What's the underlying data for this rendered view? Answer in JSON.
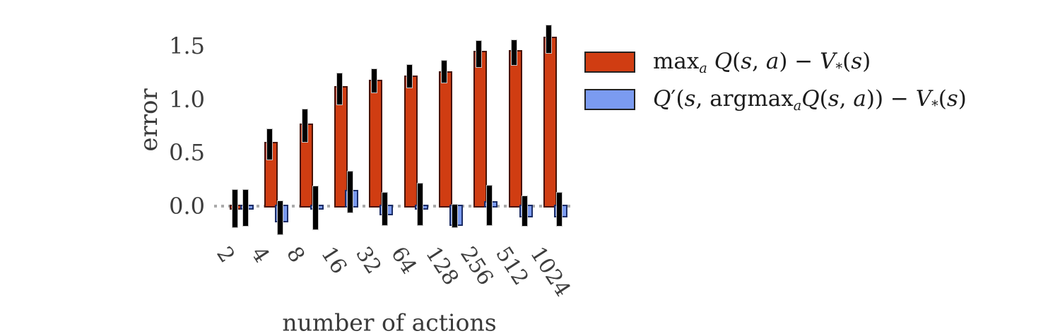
{
  "chart_data": {
    "type": "bar",
    "title": "",
    "xlabel": "number of actions",
    "ylabel": "error",
    "categories": [
      "2",
      "4",
      "8",
      "16",
      "32",
      "64",
      "128",
      "256",
      "512",
      "1024"
    ],
    "ytick_values": [
      0.0,
      0.5,
      1.0,
      1.5
    ],
    "ytick_labels": [
      "0.0",
      "0.5",
      "1.0",
      "1.5"
    ],
    "ylim": [
      -0.45,
      1.78
    ],
    "grid": false,
    "spines": false,
    "zero_line": {
      "style": "dotted",
      "color": "#ababab"
    },
    "legend_position": "outside-right-top",
    "error_bar_color": "#000000",
    "series": [
      {
        "id": "single-q-overestimate",
        "label_plain": "max_a Q(s, a) - V*(s)",
        "color": "#d03d12",
        "edge_color": "#471204",
        "values": [
          -0.02,
          0.59,
          0.76,
          1.11,
          1.17,
          1.21,
          1.25,
          1.44,
          1.45,
          1.57
        ],
        "error_low": [
          -0.19,
          0.44,
          0.61,
          0.96,
          1.07,
          1.12,
          1.16,
          1.31,
          1.33,
          1.44
        ],
        "error_high": [
          0.16,
          0.73,
          0.91,
          1.25,
          1.29,
          1.33,
          1.37,
          1.55,
          1.56,
          1.7
        ],
        "label_parts": [
          {
            "t": "max",
            "s": "rm"
          },
          {
            "t": "a",
            "s": "sub"
          },
          {
            "t": " ",
            "s": "rm"
          },
          {
            "t": "Q",
            "s": "it"
          },
          {
            "t": "(",
            "s": "rm"
          },
          {
            "t": "s",
            "s": "it"
          },
          {
            "t": ", ",
            "s": "rm"
          },
          {
            "t": "a",
            "s": "it"
          },
          {
            "t": ")",
            "s": "rm"
          },
          {
            "t": " − ",
            "s": "rm"
          },
          {
            "t": "V",
            "s": "it"
          },
          {
            "t": "*",
            "s": "subr"
          },
          {
            "t": "(",
            "s": "rm"
          },
          {
            "t": "s",
            "s": "it"
          },
          {
            "t": ")",
            "s": "rm"
          }
        ]
      },
      {
        "id": "double-q-estimate",
        "label_plain": "Q'(s, argmax_a Q(s, a)) - V*(s)",
        "color": "#7b9bf0",
        "edge_color": "#1b2d66",
        "values": [
          -0.02,
          -0.14,
          -0.02,
          0.14,
          -0.07,
          -0.02,
          -0.17,
          0.03,
          -0.09,
          -0.09
        ],
        "error_low": [
          -0.18,
          -0.26,
          -0.21,
          -0.05,
          -0.17,
          -0.17,
          -0.19,
          -0.17,
          -0.18,
          -0.18
        ],
        "error_high": [
          0.16,
          0.05,
          0.19,
          0.33,
          0.13,
          0.22,
          0.02,
          0.2,
          0.1,
          0.13
        ],
        "label_parts": [
          {
            "t": "Q",
            "s": "it"
          },
          {
            "t": "′",
            "s": "rm"
          },
          {
            "t": "(",
            "s": "rm"
          },
          {
            "t": "s",
            "s": "it"
          },
          {
            "t": ", ",
            "s": "rm"
          },
          {
            "t": "argmax",
            "s": "rm"
          },
          {
            "t": "a",
            "s": "sub"
          },
          {
            "t": "Q",
            "s": "it"
          },
          {
            "t": "(",
            "s": "rm"
          },
          {
            "t": "s",
            "s": "it"
          },
          {
            "t": ", ",
            "s": "rm"
          },
          {
            "t": "a",
            "s": "it"
          },
          {
            "t": "))",
            "s": "rm"
          },
          {
            "t": " − ",
            "s": "rm"
          },
          {
            "t": "V",
            "s": "it"
          },
          {
            "t": "*",
            "s": "subr"
          },
          {
            "t": "(",
            "s": "rm"
          },
          {
            "t": "s",
            "s": "it"
          },
          {
            "t": ")",
            "s": "rm"
          }
        ]
      }
    ]
  }
}
